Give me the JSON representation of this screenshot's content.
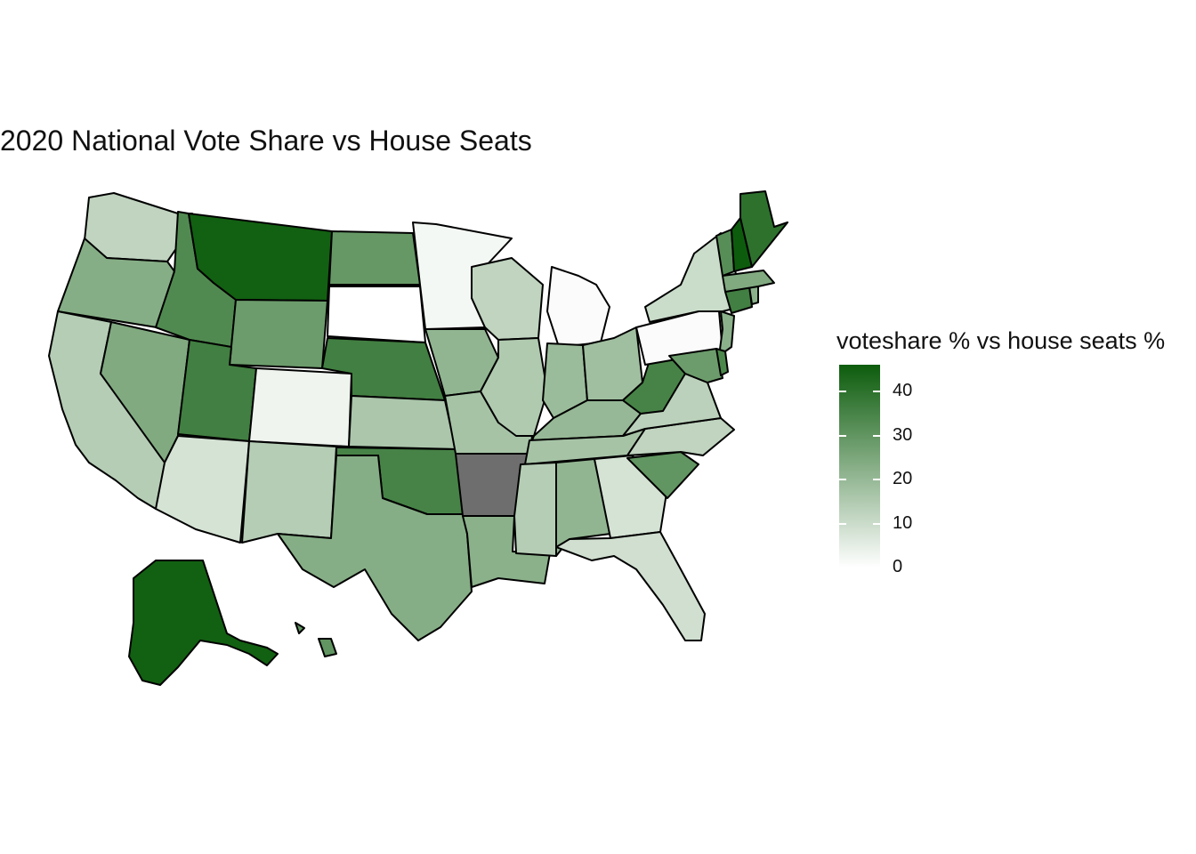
{
  "title": "2020 National Vote Share vs House Seats",
  "legend": {
    "title": "voteshare % vs house seats %",
    "ticks": [
      "0",
      "10",
      "20",
      "30",
      "40"
    ],
    "min": 0,
    "max": 46,
    "low_color": "#ffffff",
    "high_color": "#0d5c0d",
    "na_color": "#6e6e6e"
  },
  "map_data": {
    "type": "choropleth",
    "variable": "voteshare % vs house seats %",
    "states": [
      {
        "id": "WA",
        "value": 12
      },
      {
        "id": "OR",
        "value": 23
      },
      {
        "id": "CA",
        "value": 14
      },
      {
        "id": "NV",
        "value": 24
      },
      {
        "id": "ID",
        "value": 33
      },
      {
        "id": "MT",
        "value": 45
      },
      {
        "id": "WY",
        "value": 28
      },
      {
        "id": "UT",
        "value": 36
      },
      {
        "id": "AZ",
        "value": 8
      },
      {
        "id": "CO",
        "value": 3
      },
      {
        "id": "NM",
        "value": 14
      },
      {
        "id": "ND",
        "value": 29
      },
      {
        "id": "SD",
        "value": 0
      },
      {
        "id": "NE",
        "value": 36
      },
      {
        "id": "KS",
        "value": 16
      },
      {
        "id": "OK",
        "value": 35
      },
      {
        "id": "TX",
        "value": 23
      },
      {
        "id": "MN",
        "value": 2
      },
      {
        "id": "IA",
        "value": 21
      },
      {
        "id": "MO",
        "value": 17
      },
      {
        "id": "AR",
        "value": null
      },
      {
        "id": "LA",
        "value": 22
      },
      {
        "id": "WI",
        "value": 12
      },
      {
        "id": "IL",
        "value": 15
      },
      {
        "id": "MI",
        "value": 1
      },
      {
        "id": "IN",
        "value": 19
      },
      {
        "id": "OH",
        "value": 18
      },
      {
        "id": "KY",
        "value": 20
      },
      {
        "id": "TN",
        "value": 17
      },
      {
        "id": "MS",
        "value": 14
      },
      {
        "id": "AL",
        "value": 21
      },
      {
        "id": "GA",
        "value": 8
      },
      {
        "id": "FL",
        "value": 9
      },
      {
        "id": "SC",
        "value": 30
      },
      {
        "id": "NC",
        "value": 12
      },
      {
        "id": "VA",
        "value": 13
      },
      {
        "id": "WV",
        "value": 35
      },
      {
        "id": "PA",
        "value": 1
      },
      {
        "id": "NY",
        "value": 10
      },
      {
        "id": "NJ",
        "value": 22
      },
      {
        "id": "MD",
        "value": 28
      },
      {
        "id": "DE",
        "value": 34
      },
      {
        "id": "CT",
        "value": 36
      },
      {
        "id": "RI",
        "value": 22
      },
      {
        "id": "MA",
        "value": 24
      },
      {
        "id": "VT",
        "value": 32
      },
      {
        "id": "NH",
        "value": 46
      },
      {
        "id": "ME",
        "value": 40
      },
      {
        "id": "AK",
        "value": 45
      },
      {
        "id": "HI",
        "value": 30
      }
    ]
  }
}
